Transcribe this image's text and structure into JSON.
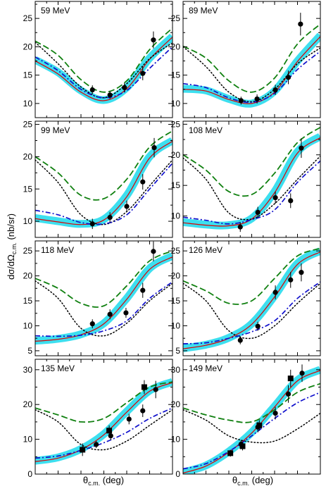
{
  "figure": {
    "ylabel_main": "dσ/dΩ",
    "ylabel_sub": "c.m.",
    "ylabel_unit": " (nb/sr)",
    "xlabel_main": "θ",
    "xlabel_sub": "c.m.",
    "xlabel_unit": " (deg)"
  },
  "chart_data": [
    {
      "type": "line",
      "title": "59 MeV",
      "ylim": [
        7.5,
        28
      ],
      "yticks": [
        10,
        15,
        20,
        25
      ],
      "xlim": [
        0,
        180
      ],
      "series": [
        {
          "style": "band",
          "values": [
            17.7,
            15.5,
            12.3,
            10.6,
            12.8,
            18.0,
            21.8
          ]
        },
        {
          "style": "solid-red",
          "values": [
            17.5,
            15.2,
            12.0,
            10.5,
            12.6,
            17.8,
            21.7
          ]
        },
        {
          "style": "dashed-green",
          "values": [
            21.0,
            18.5,
            14.2,
            12.0,
            14.0,
            19.5,
            23.3
          ]
        },
        {
          "style": "dotted-black",
          "values": [
            20.8,
            17.0,
            12.9,
            11.0,
            13.5,
            17.9,
            20.7
          ]
        },
        {
          "style": "dashdot-blue",
          "values": [
            18.2,
            15.8,
            12.5,
            11.0,
            12.3,
            16.2,
            20.0
          ]
        }
      ],
      "points": [
        {
          "x": 75,
          "y": 12.4,
          "err": 0.8,
          "marker": "circle"
        },
        {
          "x": 98,
          "y": 11.5,
          "err": 0.7,
          "marker": "circle"
        },
        {
          "x": 117,
          "y": 12.8,
          "err": 0.8,
          "marker": "circle"
        },
        {
          "x": 141,
          "y": 15.3,
          "err": 1.2,
          "marker": "circle"
        },
        {
          "x": 155,
          "y": 21.2,
          "err": 1.5,
          "marker": "circle"
        }
      ]
    },
    {
      "type": "line",
      "title": "89 MeV",
      "ylim": [
        7.5,
        28
      ],
      "yticks": [
        10,
        15,
        20,
        25
      ],
      "xlim": [
        0,
        180
      ],
      "series": [
        {
          "style": "band",
          "values": [
            12.6,
            12.3,
            10.8,
            10.0,
            12.2,
            17.5,
            22.0
          ]
        },
        {
          "style": "solid-red",
          "values": [
            12.5,
            12.2,
            10.7,
            10.0,
            12.0,
            17.4,
            21.8
          ]
        },
        {
          "style": "dashed-green",
          "values": [
            20.1,
            18.0,
            14.0,
            12.0,
            14.5,
            20.5,
            24.0
          ]
        },
        {
          "style": "dotted-black",
          "values": [
            20.0,
            16.5,
            12.0,
            10.3,
            12.5,
            17.0,
            19.8
          ]
        },
        {
          "style": "dashdot-blue",
          "values": [
            13.5,
            12.8,
            11.0,
            10.2,
            11.8,
            16.0,
            19.2
          ]
        }
      ],
      "points": [
        {
          "x": 76,
          "y": 10.5,
          "err": 0.7,
          "marker": "circle"
        },
        {
          "x": 97,
          "y": 10.8,
          "err": 0.8,
          "marker": "circle"
        },
        {
          "x": 121,
          "y": 12.4,
          "err": 0.9,
          "marker": "circle"
        },
        {
          "x": 138,
          "y": 14.6,
          "err": 1.2,
          "marker": "circle"
        },
        {
          "x": 154,
          "y": 24.0,
          "err": 2.0,
          "marker": "circle"
        }
      ]
    },
    {
      "type": "line",
      "title": "99 MeV",
      "ylim": [
        7.5,
        25.5
      ],
      "yticks": [
        10,
        15,
        20,
        25
      ],
      "xlim": [
        0,
        180
      ],
      "series": [
        {
          "style": "band",
          "values": [
            10.5,
            10.0,
            9.6,
            10.3,
            14.0,
            20.0,
            22.5
          ]
        },
        {
          "style": "solid-red",
          "values": [
            10.4,
            9.9,
            9.5,
            10.2,
            13.8,
            19.8,
            22.4
          ]
        },
        {
          "style": "dashed-green",
          "values": [
            20.0,
            17.5,
            14.0,
            13.5,
            16.5,
            21.5,
            24.0
          ]
        },
        {
          "style": "dotted-black",
          "values": [
            19.5,
            16.0,
            11.0,
            9.5,
            11.5,
            15.5,
            19.5
          ]
        },
        {
          "style": "dashdot-blue",
          "values": [
            11.7,
            11.0,
            9.8,
            9.6,
            11.0,
            15.0,
            19.0
          ]
        }
      ],
      "points": [
        {
          "x": 75,
          "y": 9.6,
          "err": 0.8,
          "marker": "circle"
        },
        {
          "x": 98,
          "y": 10.6,
          "err": 0.8,
          "marker": "circle"
        },
        {
          "x": 120,
          "y": 12.3,
          "err": 0.9,
          "marker": "circle"
        },
        {
          "x": 141,
          "y": 16.1,
          "err": 1.2,
          "marker": "circle"
        },
        {
          "x": 156,
          "y": 21.4,
          "err": 1.5,
          "marker": "circle"
        }
      ]
    },
    {
      "type": "line",
      "title": "108 MeV",
      "ylim": [
        6.5,
        25.5
      ],
      "yticks": [
        10,
        15,
        20,
        25
      ],
      "xlim": [
        0,
        180
      ],
      "series": [
        {
          "style": "band",
          "values": [
            9.0,
            8.6,
            8.5,
            9.6,
            14.0,
            20.5,
            23.0
          ]
        },
        {
          "style": "solid-red",
          "values": [
            8.9,
            8.5,
            8.4,
            9.5,
            13.8,
            20.3,
            22.8
          ]
        },
        {
          "style": "dashed-green",
          "values": [
            20.0,
            17.5,
            14.0,
            13.5,
            17.0,
            22.0,
            24.5
          ]
        },
        {
          "style": "dotted-black",
          "values": [
            19.5,
            16.0,
            10.5,
            9.5,
            12.0,
            16.0,
            19.8
          ]
        },
        {
          "style": "dashdot-blue",
          "values": [
            9.8,
            9.3,
            8.7,
            9.4,
            11.0,
            15.5,
            19.0
          ]
        }
      ],
      "points": [
        {
          "x": 75,
          "y": 8.2,
          "err": 0.8,
          "marker": "circle"
        },
        {
          "x": 98,
          "y": 10.6,
          "err": 0.9,
          "marker": "circle"
        },
        {
          "x": 121,
          "y": 13.0,
          "err": 1.0,
          "marker": "circle"
        },
        {
          "x": 141,
          "y": 12.5,
          "err": 1.2,
          "marker": "circle"
        },
        {
          "x": 155,
          "y": 21.1,
          "err": 1.6,
          "marker": "circle"
        }
      ]
    },
    {
      "type": "line",
      "title": "118 MeV",
      "ylim": [
        4,
        27
      ],
      "yticks": [
        5,
        10,
        15,
        20,
        25
      ],
      "xlim": [
        0,
        180
      ],
      "series": [
        {
          "style": "band",
          "values": [
            7.0,
            7.4,
            8.3,
            10.5,
            15.5,
            21.5,
            24.0
          ]
        },
        {
          "style": "solid-red",
          "values": [
            6.9,
            7.3,
            8.2,
            10.4,
            15.3,
            21.3,
            23.8
          ]
        },
        {
          "style": "dashed-green",
          "values": [
            19.5,
            17.5,
            14.5,
            14.0,
            18.0,
            23.0,
            25.0
          ]
        },
        {
          "style": "dotted-black",
          "values": [
            19.0,
            15.5,
            9.5,
            8.0,
            10.5,
            15.0,
            18.5
          ]
        },
        {
          "style": "dashdot-blue",
          "values": [
            8.0,
            7.9,
            8.1,
            9.0,
            11.0,
            15.5,
            18.8
          ]
        }
      ],
      "points": [
        {
          "x": 75,
          "y": 10.4,
          "err": 0.9,
          "marker": "circle"
        },
        {
          "x": 98,
          "y": 12.3,
          "err": 1.0,
          "marker": "circle"
        },
        {
          "x": 119,
          "y": 12.6,
          "err": 1.0,
          "marker": "circle"
        },
        {
          "x": 141,
          "y": 17.1,
          "err": 1.5,
          "marker": "circle"
        },
        {
          "x": 155,
          "y": 24.9,
          "err": 2.0,
          "marker": "circle"
        }
      ]
    },
    {
      "type": "line",
      "title": "126 MeV",
      "ylim": [
        4,
        27
      ],
      "yticks": [
        5,
        10,
        15,
        20,
        25
      ],
      "xlim": [
        0,
        180
      ],
      "series": [
        {
          "style": "band",
          "values": [
            5.5,
            6.2,
            7.6,
            10.4,
            16.0,
            22.5,
            25.0
          ]
        },
        {
          "style": "solid-red",
          "values": [
            5.4,
            6.1,
            7.5,
            10.3,
            15.8,
            22.3,
            24.8
          ]
        },
        {
          "style": "dashed-green",
          "values": [
            19.0,
            17.0,
            14.5,
            15.0,
            19.5,
            24.0,
            25.5
          ]
        },
        {
          "style": "dotted-black",
          "values": [
            18.5,
            15.0,
            9.0,
            7.5,
            10.0,
            14.5,
            18.5
          ]
        },
        {
          "style": "dashdot-blue",
          "values": [
            6.4,
            6.6,
            7.5,
            8.8,
            11.0,
            15.5,
            18.8
          ]
        }
      ],
      "points": [
        {
          "x": 75,
          "y": 7.1,
          "err": 0.8,
          "marker": "circle"
        },
        {
          "x": 98,
          "y": 9.9,
          "err": 0.9,
          "marker": "circle"
        },
        {
          "x": 121,
          "y": 16.7,
          "err": 1.4,
          "marker": "circle"
        },
        {
          "x": 141,
          "y": 19.2,
          "err": 1.6,
          "marker": "circle"
        },
        {
          "x": 155,
          "y": 20.7,
          "err": 1.8,
          "marker": "circle"
        }
      ]
    },
    {
      "type": "line",
      "title": "135 MeV",
      "ylim": [
        0,
        33
      ],
      "yticks": [
        0,
        10,
        20,
        30
      ],
      "xlim": [
        0,
        180
      ],
      "series": [
        {
          "style": "band",
          "values": [
            3.8,
            4.8,
            7.2,
            11.5,
            18.0,
            24.0,
            26.5
          ]
        },
        {
          "style": "solid-red",
          "values": [
            3.6,
            4.6,
            7.0,
            11.3,
            17.8,
            23.8,
            26.3
          ]
        },
        {
          "style": "dashed-green",
          "values": [
            19.0,
            17.0,
            15.0,
            16.0,
            20.5,
            25.0,
            26.5
          ]
        },
        {
          "style": "dotted-black",
          "values": [
            18.5,
            15.0,
            8.5,
            7.0,
            9.5,
            14.0,
            18.5
          ]
        },
        {
          "style": "dashdot-blue",
          "values": [
            4.6,
            5.2,
            6.8,
            9.0,
            12.0,
            16.0,
            19.0
          ]
        }
      ],
      "points": [
        {
          "x": 62,
          "y": 7.0,
          "err": 1.8,
          "marker": "square"
        },
        {
          "x": 80,
          "y": 8.5,
          "err": 1.0,
          "marker": "circle"
        },
        {
          "x": 97,
          "y": 12.5,
          "err": 1.5,
          "marker": "square"
        },
        {
          "x": 99,
          "y": 11.0,
          "err": 1.2,
          "marker": "circle"
        },
        {
          "x": 123,
          "y": 15.8,
          "err": 1.5,
          "marker": "circle"
        },
        {
          "x": 141,
          "y": 18.2,
          "err": 1.8,
          "marker": "circle"
        },
        {
          "x": 143,
          "y": 25.0,
          "err": 2.0,
          "marker": "square"
        },
        {
          "x": 158,
          "y": 24.3,
          "err": 2.5,
          "marker": "circle"
        }
      ]
    },
    {
      "type": "line",
      "title": "149 MeV",
      "ylim": [
        0,
        33
      ],
      "yticks": [
        0,
        10,
        20,
        30
      ],
      "xlim": [
        0,
        180
      ],
      "series": [
        {
          "style": "band",
          "values": [
            0.5,
            2.5,
            6.5,
            12.0,
            19.5,
            27.0,
            30.0
          ]
        },
        {
          "style": "solid-red",
          "values": [
            0.3,
            2.3,
            6.3,
            11.8,
            19.3,
            26.8,
            29.8
          ]
        },
        {
          "style": "dashed-green",
          "values": [
            19.0,
            17.0,
            15.5,
            15.0,
            18.5,
            23.5,
            26.0
          ]
        },
        {
          "style": "dotted-black",
          "values": [
            18.5,
            15.5,
            11.0,
            9.2,
            9.5,
            13.0,
            17.5
          ]
        },
        {
          "style": "dashdot-blue",
          "values": [
            1.5,
            3.0,
            6.5,
            11.0,
            16.0,
            20.5,
            23.5
          ]
        }
      ],
      "points": [
        {
          "x": 62,
          "y": 6.0,
          "err": 1.0,
          "marker": "square"
        },
        {
          "x": 76,
          "y": 8.6,
          "err": 1.2,
          "marker": "circle"
        },
        {
          "x": 78,
          "y": 8.0,
          "err": 1.2,
          "marker": "square"
        },
        {
          "x": 98,
          "y": 13.5,
          "err": 1.5,
          "marker": "circle"
        },
        {
          "x": 100,
          "y": 14.0,
          "err": 1.5,
          "marker": "square"
        },
        {
          "x": 121,
          "y": 17.5,
          "err": 1.8,
          "marker": "circle"
        },
        {
          "x": 138,
          "y": 23.0,
          "err": 2.5,
          "marker": "circle"
        },
        {
          "x": 141,
          "y": 27.5,
          "err": 2.5,
          "marker": "square"
        },
        {
          "x": 156,
          "y": 29.0,
          "err": 2.5,
          "marker": "circle"
        }
      ]
    }
  ]
}
